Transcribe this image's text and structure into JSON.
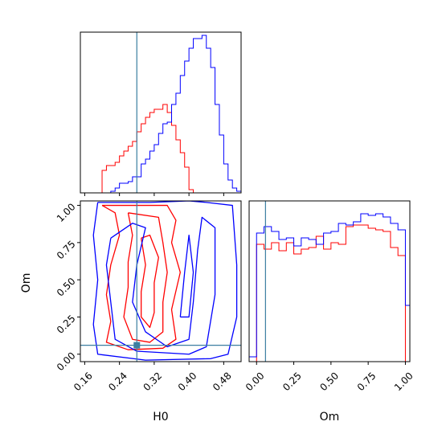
{
  "chart_data": [
    {
      "type": "step-histogram",
      "panel": "H0 marginal",
      "x_edges": [
        0.2,
        0.21,
        0.22,
        0.23,
        0.24,
        0.25,
        0.26,
        0.27,
        0.28,
        0.29,
        0.3,
        0.31,
        0.32,
        0.33,
        0.34,
        0.35,
        0.36,
        0.37,
        0.38,
        0.39,
        0.4,
        0.41,
        0.42,
        0.43,
        0.44,
        0.45,
        0.46,
        0.47,
        0.48,
        0.49,
        0.5,
        0.51,
        0.52
      ],
      "xlim": [
        0.15,
        0.52
      ],
      "ylim": [
        0,
        1.0
      ],
      "truth": 0.28,
      "series": [
        {
          "color": "#ff0000",
          "values": [
            0.14,
            0.17,
            0.17,
            0.19,
            0.23,
            0.26,
            0.29,
            0.32,
            0.38,
            0.43,
            0.47,
            0.5,
            0.52,
            0.52,
            0.55,
            0.5,
            0.42,
            0.33,
            0.25,
            0.16,
            0.02,
            0.0,
            0.0,
            0.0,
            0.0,
            0.0,
            0.0,
            0.0,
            0.0,
            0.0,
            0.0,
            0.0
          ]
        },
        {
          "color": "#0000ff",
          "values": [
            0.0,
            0.0,
            0.01,
            0.03,
            0.06,
            0.06,
            0.07,
            0.1,
            0.1,
            0.18,
            0.21,
            0.26,
            0.3,
            0.37,
            0.43,
            0.44,
            0.55,
            0.62,
            0.73,
            0.82,
            0.9,
            0.96,
            0.96,
            0.98,
            0.9,
            0.78,
            0.55,
            0.36,
            0.18,
            0.08,
            0.03,
            0.01
          ]
        }
      ]
    },
    {
      "type": "contour",
      "panel": "joint H0-Om",
      "xlabel": "H0",
      "ylabel": "Om",
      "xlim": [
        0.15,
        0.52
      ],
      "ylim": [
        -0.05,
        1.03
      ],
      "xticks": [
        "0.16",
        "0.24",
        "0.32",
        "0.40",
        "0.48"
      ],
      "xtick_values": [
        0.16,
        0.24,
        0.32,
        0.4,
        0.48
      ],
      "yticks": [
        "0.00",
        "0.25",
        "0.50",
        "0.75",
        "1.00"
      ],
      "ytick_values": [
        0.0,
        0.25,
        0.5,
        0.75,
        1.0
      ],
      "truth": {
        "x": 0.28,
        "y": 0.06
      },
      "series": [
        {
          "color": "#ff0000",
          "levels": [
            [
              [
                0.2,
                1.0
              ],
              [
                0.23,
                0.95
              ],
              [
                0.24,
                0.8
              ],
              [
                0.22,
                0.6
              ],
              [
                0.21,
                0.4
              ],
              [
                0.22,
                0.22
              ],
              [
                0.21,
                0.08
              ],
              [
                0.26,
                0.03
              ],
              [
                0.34,
                0.04
              ],
              [
                0.37,
                0.1
              ],
              [
                0.36,
                0.3
              ],
              [
                0.38,
                0.55
              ],
              [
                0.36,
                0.75
              ],
              [
                0.37,
                0.9
              ],
              [
                0.35,
                1.0
              ],
              [
                0.3,
                1.0
              ],
              [
                0.2,
                1.0
              ]
            ],
            [
              [
                0.26,
                0.95
              ],
              [
                0.27,
                0.8
              ],
              [
                0.26,
                0.62
              ],
              [
                0.26,
                0.45
              ],
              [
                0.25,
                0.25
              ],
              [
                0.27,
                0.1
              ],
              [
                0.31,
                0.08
              ],
              [
                0.34,
                0.15
              ],
              [
                0.34,
                0.35
              ],
              [
                0.35,
                0.55
              ],
              [
                0.34,
                0.75
              ],
              [
                0.33,
                0.92
              ],
              [
                0.26,
                0.95
              ]
            ],
            [
              [
                0.29,
                0.78
              ],
              [
                0.3,
                0.6
              ],
              [
                0.29,
                0.42
              ],
              [
                0.29,
                0.25
              ],
              [
                0.31,
                0.18
              ],
              [
                0.32,
                0.28
              ],
              [
                0.32,
                0.48
              ],
              [
                0.33,
                0.65
              ],
              [
                0.31,
                0.8
              ],
              [
                0.29,
                0.78
              ]
            ]
          ]
        },
        {
          "color": "#0000ff",
          "levels": [
            [
              [
                0.19,
                1.02
              ],
              [
                0.31,
                1.02
              ],
              [
                0.4,
                1.03
              ],
              [
                0.44,
                1.02
              ],
              [
                0.5,
                1.0
              ],
              [
                0.51,
                0.6
              ],
              [
                0.51,
                0.25
              ],
              [
                0.49,
                0.0
              ],
              [
                0.45,
                -0.03
              ],
              [
                0.3,
                -0.04
              ],
              [
                0.19,
                0.0
              ],
              [
                0.18,
                0.2
              ],
              [
                0.19,
                0.5
              ],
              [
                0.18,
                0.8
              ],
              [
                0.19,
                1.02
              ]
            ],
            [
              [
                0.22,
                0.78
              ],
              [
                0.27,
                0.88
              ],
              [
                0.3,
                0.85
              ],
              [
                0.28,
                0.6
              ],
              [
                0.27,
                0.35
              ],
              [
                0.3,
                0.15
              ],
              [
                0.35,
                0.05
              ],
              [
                0.4,
                0.1
              ],
              [
                0.41,
                0.35
              ],
              [
                0.42,
                0.7
              ],
              [
                0.43,
                0.92
              ],
              [
                0.46,
                0.85
              ],
              [
                0.46,
                0.4
              ],
              [
                0.44,
                0.05
              ],
              [
                0.4,
                0.0
              ],
              [
                0.28,
                0.02
              ],
              [
                0.23,
                0.1
              ],
              [
                0.22,
                0.35
              ],
              [
                0.21,
                0.6
              ],
              [
                0.22,
                0.78
              ]
            ],
            [
              [
                0.38,
                0.25
              ],
              [
                0.39,
                0.55
              ],
              [
                0.4,
                0.8
              ],
              [
                0.41,
                0.55
              ],
              [
                0.4,
                0.25
              ],
              [
                0.38,
                0.25
              ]
            ]
          ]
        }
      ]
    },
    {
      "type": "step-histogram",
      "panel": "Om marginal",
      "xlabel": "Om",
      "x_edges": [
        -0.05,
        0.0,
        0.05,
        0.1,
        0.15,
        0.2,
        0.25,
        0.3,
        0.35,
        0.4,
        0.45,
        0.5,
        0.55,
        0.6,
        0.65,
        0.7,
        0.75,
        0.8,
        0.85,
        0.9,
        0.95,
        1.0,
        1.03
      ],
      "xlim": [
        -0.05,
        1.03
      ],
      "xticks": [
        "0.00",
        "0.25",
        "0.50",
        "0.75",
        "1.00"
      ],
      "xtick_values": [
        0.0,
        0.25,
        0.5,
        0.75,
        1.0
      ],
      "ylim": [
        0,
        1.0
      ],
      "truth": 0.06,
      "series": [
        {
          "color": "#ff0000",
          "values": [
            0.0,
            0.73,
            0.7,
            0.74,
            0.69,
            0.74,
            0.67,
            0.7,
            0.71,
            0.78,
            0.7,
            0.74,
            0.73,
            0.84,
            0.85,
            0.85,
            0.83,
            0.82,
            0.81,
            0.71,
            0.66,
            0.0
          ]
        },
        {
          "color": "#0000ff",
          "values": [
            0.03,
            0.8,
            0.84,
            0.81,
            0.76,
            0.77,
            0.72,
            0.77,
            0.76,
            0.73,
            0.8,
            0.81,
            0.86,
            0.85,
            0.87,
            0.92,
            0.91,
            0.92,
            0.9,
            0.86,
            0.82,
            0.35
          ]
        }
      ]
    }
  ]
}
